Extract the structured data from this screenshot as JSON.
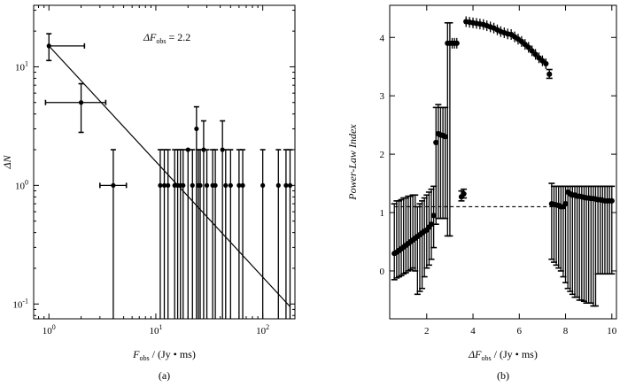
{
  "chart_data": [
    {
      "type": "scatter",
      "panel_label": "(a)",
      "xlabel": {
        "main": "F",
        "sub": "obs",
        "rest": " / (Jy • ms)"
      },
      "ylabel": {
        "main": "ΔN"
      },
      "annotation": {
        "main": "ΔF",
        "sub": "obs",
        "rest": " = 2.2"
      },
      "xscale": "log",
      "yscale": "log",
      "xlim": [
        0.72,
        200
      ],
      "ylim": [
        0.075,
        33
      ],
      "xticks": [
        {
          "v": 1,
          "base": "10",
          "exp": "0"
        },
        {
          "v": 10,
          "base": "10",
          "exp": "1"
        },
        {
          "v": 100,
          "base": "10",
          "exp": "2"
        }
      ],
      "yticks": [
        {
          "v": 0.1,
          "base": "10",
          "exp": "-1"
        },
        {
          "v": 1,
          "base": "10",
          "exp": "0"
        },
        {
          "v": 10,
          "base": "10",
          "exp": "1"
        }
      ],
      "fit_line": {
        "x": [
          1,
          180
        ],
        "y": [
          15,
          0.095
        ]
      },
      "points": [
        {
          "x": 1,
          "y": 15,
          "xerr": [
            1.0,
            2.15
          ],
          "yerr": [
            11.3,
            19
          ]
        },
        {
          "x": 2,
          "y": 5,
          "xerr": [
            0.93,
            3.4
          ],
          "yerr": [
            2.8,
            7.2
          ]
        },
        {
          "x": 4,
          "y": 1,
          "xerr": [
            3.0,
            5.3
          ],
          "yerr": [
            0.075,
            2
          ]
        },
        {
          "x": 11,
          "y": 1,
          "yerr": [
            0.075,
            2
          ]
        },
        {
          "x": 12,
          "y": 1,
          "yerr": [
            0.075,
            2
          ]
        },
        {
          "x": 13,
          "y": 1,
          "yerr": [
            0.075,
            2
          ]
        },
        {
          "x": 15,
          "y": 1,
          "yerr": [
            0.075,
            2
          ]
        },
        {
          "x": 16,
          "y": 1,
          "yerr": [
            0.075,
            2
          ]
        },
        {
          "x": 17,
          "y": 1,
          "yerr": [
            0.075,
            2
          ]
        },
        {
          "x": 18,
          "y": 1,
          "yerr": [
            0.075,
            2
          ]
        },
        {
          "x": 20,
          "y": 2,
          "yerr": [
            0.075,
            2
          ]
        },
        {
          "x": 22,
          "y": 1,
          "yerr": [
            0.075,
            2
          ]
        },
        {
          "x": 24,
          "y": 3,
          "yerr": [
            0.075,
            4.6
          ]
        },
        {
          "x": 25,
          "y": 1,
          "yerr": [
            0.075,
            2
          ]
        },
        {
          "x": 26,
          "y": 1,
          "yerr": [
            0.075,
            2
          ]
        },
        {
          "x": 28,
          "y": 2,
          "yerr": [
            0.075,
            3.5
          ]
        },
        {
          "x": 30,
          "y": 1,
          "yerr": [
            0.075,
            2
          ]
        },
        {
          "x": 34,
          "y": 1,
          "yerr": [
            0.075,
            2
          ]
        },
        {
          "x": 36,
          "y": 1,
          "yerr": [
            0.075,
            2
          ]
        },
        {
          "x": 42,
          "y": 2,
          "yerr": [
            0.075,
            3.5
          ]
        },
        {
          "x": 45,
          "y": 1,
          "yerr": [
            0.075,
            2
          ]
        },
        {
          "x": 50,
          "y": 1,
          "yerr": [
            0.075,
            2
          ]
        },
        {
          "x": 60,
          "y": 1,
          "yerr": [
            0.075,
            2
          ]
        },
        {
          "x": 65,
          "y": 1,
          "yerr": [
            0.075,
            2
          ]
        },
        {
          "x": 100,
          "y": 1,
          "yerr": [
            0.075,
            2
          ]
        },
        {
          "x": 140,
          "y": 1,
          "yerr": [
            0.075,
            2
          ]
        },
        {
          "x": 165,
          "y": 1,
          "yerr": [
            0.075,
            2
          ]
        },
        {
          "x": 180,
          "y": 1,
          "yerr": [
            0.075,
            2
          ]
        }
      ]
    },
    {
      "type": "scatter",
      "panel_label": "(b)",
      "xlabel": {
        "main": "ΔF",
        "sub": "obs",
        "rest": " / (Jy • ms)"
      },
      "ylabel": {
        "main": "Power-Law Index"
      },
      "xscale": "linear",
      "yscale": "linear",
      "xlim": [
        0.4,
        10.2
      ],
      "ylim": [
        -0.82,
        4.55
      ],
      "xticks": [
        {
          "v": 2,
          "t": "2"
        },
        {
          "v": 4,
          "t": "4"
        },
        {
          "v": 6,
          "t": "6"
        },
        {
          "v": 8,
          "t": "8"
        },
        {
          "v": 10,
          "t": "10"
        }
      ],
      "yticks": [
        {
          "v": 0,
          "t": "0"
        },
        {
          "v": 1,
          "t": "1"
        },
        {
          "v": 2,
          "t": "2"
        },
        {
          "v": 3,
          "t": "3"
        },
        {
          "v": 4,
          "t": "4"
        }
      ],
      "reference_line": {
        "y": 1.1,
        "x": [
          0.6,
          7.9
        ]
      },
      "points": [
        {
          "x": 0.6,
          "y": 0.3,
          "lo": -0.15,
          "hi": 1.15
        },
        {
          "x": 0.7,
          "y": 0.32,
          "lo": -0.12,
          "hi": 1.2
        },
        {
          "x": 0.8,
          "y": 0.35,
          "lo": -0.1,
          "hi": 1.2
        },
        {
          "x": 0.9,
          "y": 0.38,
          "lo": -0.08,
          "hi": 1.22
        },
        {
          "x": 1.0,
          "y": 0.41,
          "lo": -0.05,
          "hi": 1.25
        },
        {
          "x": 1.1,
          "y": 0.44,
          "lo": -0.03,
          "hi": 1.25
        },
        {
          "x": 1.2,
          "y": 0.47,
          "lo": 0.0,
          "hi": 1.28
        },
        {
          "x": 1.3,
          "y": 0.5,
          "lo": 0.02,
          "hi": 1.28
        },
        {
          "x": 1.4,
          "y": 0.53,
          "lo": 0.05,
          "hi": 1.3
        },
        {
          "x": 1.5,
          "y": 0.56,
          "lo": 0.0,
          "hi": 1.3
        },
        {
          "x": 1.6,
          "y": 0.59,
          "lo": -0.4,
          "hi": 1.1
        },
        {
          "x": 1.7,
          "y": 0.62,
          "lo": -0.35,
          "hi": 1.15
        },
        {
          "x": 1.8,
          "y": 0.65,
          "lo": -0.3,
          "hi": 1.2
        },
        {
          "x": 1.9,
          "y": 0.68,
          "lo": -0.1,
          "hi": 1.25
        },
        {
          "x": 2.0,
          "y": 0.7,
          "lo": 0.05,
          "hi": 1.3
        },
        {
          "x": 2.1,
          "y": 0.75,
          "lo": 0.1,
          "hi": 1.35
        },
        {
          "x": 2.2,
          "y": 0.8,
          "lo": 0.2,
          "hi": 1.4
        },
        {
          "x": 2.3,
          "y": 0.95,
          "lo": 0.4,
          "hi": 1.45
        },
        {
          "x": 2.4,
          "y": 2.2,
          "lo": 0.8,
          "hi": 2.8
        },
        {
          "x": 2.5,
          "y": 2.35,
          "lo": 0.9,
          "hi": 2.85
        },
        {
          "x": 2.6,
          "y": 2.33,
          "lo": 0.9,
          "hi": 2.8
        },
        {
          "x": 2.7,
          "y": 2.32,
          "lo": 0.9,
          "hi": 2.8
        },
        {
          "x": 2.8,
          "y": 2.3,
          "lo": 0.9,
          "hi": 2.8
        },
        {
          "x": 2.9,
          "y": 3.9,
          "lo": 0.6,
          "hi": 4.25
        },
        {
          "x": 3.0,
          "y": 3.9,
          "lo": 0.6,
          "hi": 4.25
        },
        {
          "x": 3.1,
          "y": 3.9
        },
        {
          "x": 3.2,
          "y": 3.9
        },
        {
          "x": 3.3,
          "y": 3.9
        },
        {
          "x": 3.5,
          "y": 1.27,
          "lo": 1.2,
          "hi": 1.37
        },
        {
          "x": 3.6,
          "y": 1.32,
          "lo": 1.25,
          "hi": 1.4
        },
        {
          "x": 3.7,
          "y": 4.27
        },
        {
          "x": 3.85,
          "y": 4.26
        },
        {
          "x": 4.0,
          "y": 4.25
        },
        {
          "x": 4.15,
          "y": 4.24
        },
        {
          "x": 4.3,
          "y": 4.23
        },
        {
          "x": 4.45,
          "y": 4.22
        },
        {
          "x": 4.6,
          "y": 4.2
        },
        {
          "x": 4.75,
          "y": 4.18
        },
        {
          "x": 4.9,
          "y": 4.16
        },
        {
          "x": 5.05,
          "y": 4.13
        },
        {
          "x": 5.2,
          "y": 4.1
        },
        {
          "x": 5.35,
          "y": 4.08
        },
        {
          "x": 5.5,
          "y": 4.06
        },
        {
          "x": 5.65,
          "y": 4.05
        },
        {
          "x": 5.8,
          "y": 4.01
        },
        {
          "x": 5.95,
          "y": 3.97
        },
        {
          "x": 6.1,
          "y": 3.93
        },
        {
          "x": 6.25,
          "y": 3.88
        },
        {
          "x": 6.4,
          "y": 3.83
        },
        {
          "x": 6.55,
          "y": 3.77
        },
        {
          "x": 6.7,
          "y": 3.71
        },
        {
          "x": 6.85,
          "y": 3.65
        },
        {
          "x": 7.0,
          "y": 3.6
        },
        {
          "x": 7.15,
          "y": 3.55
        },
        {
          "x": 7.3,
          "y": 3.37,
          "lo": 3.3,
          "hi": 3.45
        },
        {
          "x": 7.4,
          "y": 1.15,
          "lo": 0.2,
          "hi": 1.5
        },
        {
          "x": 7.5,
          "y": 1.14,
          "lo": 0.15,
          "hi": 1.45
        },
        {
          "x": 7.6,
          "y": 1.13,
          "lo": 0.1,
          "hi": 1.45
        },
        {
          "x": 7.7,
          "y": 1.12,
          "lo": 0.05,
          "hi": 1.45
        },
        {
          "x": 7.8,
          "y": 1.1,
          "lo": 0.0,
          "hi": 1.45
        },
        {
          "x": 7.9,
          "y": 1.1,
          "lo": -0.1,
          "hi": 1.45
        },
        {
          "x": 8.0,
          "y": 1.15,
          "lo": -0.2,
          "hi": 1.45
        },
        {
          "x": 8.1,
          "y": 1.35,
          "lo": -0.3,
          "hi": 1.45
        },
        {
          "x": 8.2,
          "y": 1.32,
          "lo": -0.35,
          "hi": 1.45
        },
        {
          "x": 8.3,
          "y": 1.3,
          "lo": -0.4,
          "hi": 1.45
        },
        {
          "x": 8.4,
          "y": 1.3,
          "lo": -0.45,
          "hi": 1.45
        },
        {
          "x": 8.5,
          "y": 1.28,
          "lo": -0.45,
          "hi": 1.45
        },
        {
          "x": 8.6,
          "y": 1.28,
          "lo": -0.5,
          "hi": 1.45
        },
        {
          "x": 8.7,
          "y": 1.27,
          "lo": -0.5,
          "hi": 1.45
        },
        {
          "x": 8.8,
          "y": 1.26,
          "lo": -0.52,
          "hi": 1.45
        },
        {
          "x": 8.9,
          "y": 1.25,
          "lo": -0.55,
          "hi": 1.45
        },
        {
          "x": 9.0,
          "y": 1.25,
          "lo": -0.55,
          "hi": 1.45
        },
        {
          "x": 9.1,
          "y": 1.24,
          "lo": -0.55,
          "hi": 1.45
        },
        {
          "x": 9.2,
          "y": 1.24,
          "lo": -0.6,
          "hi": 1.45
        },
        {
          "x": 9.3,
          "y": 1.23,
          "lo": -0.6,
          "hi": 1.45
        },
        {
          "x": 9.4,
          "y": 1.22,
          "lo": -0.05,
          "hi": 1.45
        },
        {
          "x": 9.5,
          "y": 1.22,
          "lo": -0.05,
          "hi": 1.45
        },
        {
          "x": 9.6,
          "y": 1.21,
          "lo": -0.05,
          "hi": 1.45
        },
        {
          "x": 9.7,
          "y": 1.2,
          "lo": -0.05,
          "hi": 1.45
        },
        {
          "x": 9.8,
          "y": 1.2,
          "lo": -0.05,
          "hi": 1.45
        },
        {
          "x": 9.9,
          "y": 1.2,
          "lo": -0.05,
          "hi": 1.45
        },
        {
          "x": 10.0,
          "y": 1.2,
          "lo": -0.05,
          "hi": 1.45
        }
      ]
    }
  ]
}
